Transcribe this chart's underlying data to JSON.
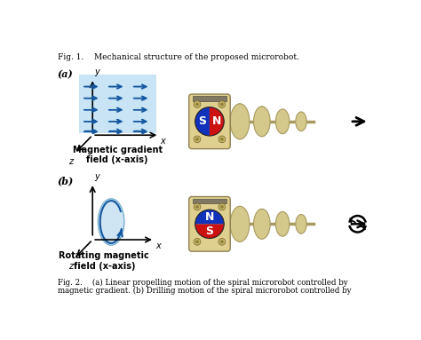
{
  "fig1_caption": "Fig. 1.    Mechanical structure of the proposed microrobot.",
  "fig2_caption_l1": "Fig. 2.    (a) Linear propelling motion of the spiral microrobot controlled by",
  "fig2_caption_l2": "magnetic gradient. (b) Drilling motion of the spiral microrobot controlled by",
  "panel_a": "(a)",
  "panel_b": "(b)",
  "label_a": "Magnetic gradient\nfield (x-axis)",
  "label_b": "Rotating magnetic\nfield (x-axis)",
  "bg": "#ffffff",
  "blue_bg": "#c8e4f5",
  "arrow_blue": "#1558a0",
  "tan": "#d4c88a",
  "tan_dark": "#a89a60",
  "tan_mid": "#c0b070",
  "magnet_red": "#cc1111",
  "magnet_blue": "#1133bb",
  "plate_color": "#e0d090",
  "bar_color": "#807860",
  "bolt_color": "#b8a850"
}
